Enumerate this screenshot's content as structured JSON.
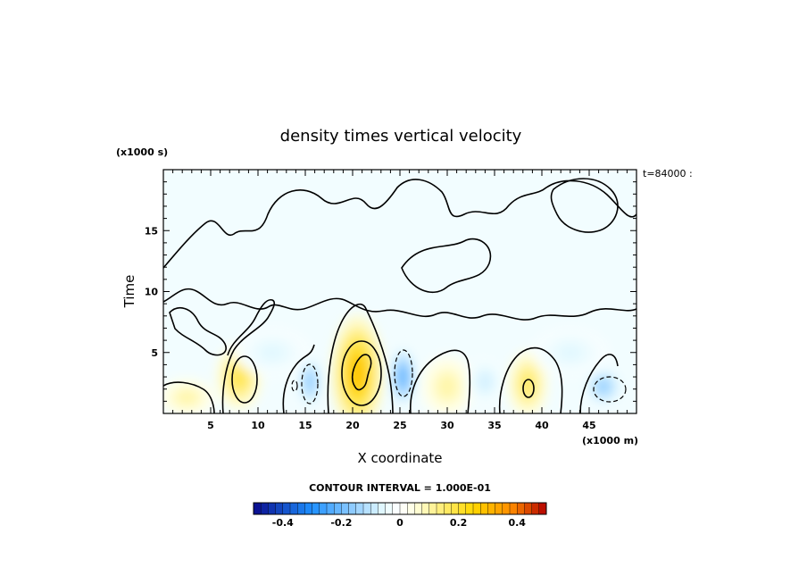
{
  "chart_data": {
    "type": "heatmap",
    "title": "density times vertical velocity",
    "xlabel": "X coordinate",
    "ylabel": "Time",
    "x_unit_label": "(x1000 m)",
    "y_unit_label": "(x1000 s)",
    "time_annotation": "t=84000 :",
    "xlim": [
      0,
      50
    ],
    "ylim": [
      0,
      20
    ],
    "x_ticks": [
      5,
      10,
      15,
      20,
      25,
      30,
      35,
      40,
      45
    ],
    "y_ticks": [
      5,
      10,
      15
    ],
    "contour_interval_text": "CONTOUR INTERVAL = 1.000E-01",
    "colorbar": {
      "range": [
        -0.5,
        0.5
      ],
      "tick_values": [
        -0.4,
        -0.2,
        0,
        0.2,
        0.4
      ],
      "tick_labels": [
        "-0.4",
        "-0.2",
        "0",
        "0.2",
        "0.4"
      ],
      "colors": [
        "#0a0a8c",
        "#1e90ff",
        "#eafcff",
        "#ffffff",
        "#ffffe0",
        "#ffd700",
        "#ff8c00",
        "#b40000"
      ]
    },
    "features": [
      {
        "kind": "positive",
        "x": 8,
        "y": 3,
        "rx": 2.5,
        "ry": 2.8,
        "peak": 0.18
      },
      {
        "kind": "positive",
        "x": 20.5,
        "y": 3.3,
        "rx": 2.8,
        "ry": 4.8,
        "peak": 0.28
      },
      {
        "kind": "positive",
        "x": 30,
        "y": 2.2,
        "rx": 2.8,
        "ry": 2.6,
        "peak": 0.1
      },
      {
        "kind": "positive",
        "x": 38.5,
        "y": 2.4,
        "rx": 2.2,
        "ry": 2.8,
        "peak": 0.16
      },
      {
        "kind": "positive",
        "x": 2.5,
        "y": 1.3,
        "rx": 3.0,
        "ry": 1.6,
        "peak": 0.1
      },
      {
        "kind": "negative",
        "x": 15.5,
        "y": 2.6,
        "rx": 1.3,
        "ry": 2.2,
        "peak": -0.16
      },
      {
        "kind": "negative",
        "x": 25.3,
        "y": 3.0,
        "rx": 1.4,
        "ry": 2.4,
        "peak": -0.22
      },
      {
        "kind": "negative",
        "x": 46.5,
        "y": 2.2,
        "rx": 2.0,
        "ry": 1.6,
        "peak": -0.15
      },
      {
        "kind": "negative",
        "x": 34,
        "y": 2.6,
        "rx": 2.0,
        "ry": 2.0,
        "peak": -0.08
      },
      {
        "kind": "negative",
        "x": 11.5,
        "y": 5.0,
        "rx": 4.0,
        "ry": 2.0,
        "peak": -0.06
      },
      {
        "kind": "negative",
        "x": 43,
        "y": 5.0,
        "rx": 4.0,
        "ry": 2.0,
        "peak": -0.06
      }
    ]
  }
}
